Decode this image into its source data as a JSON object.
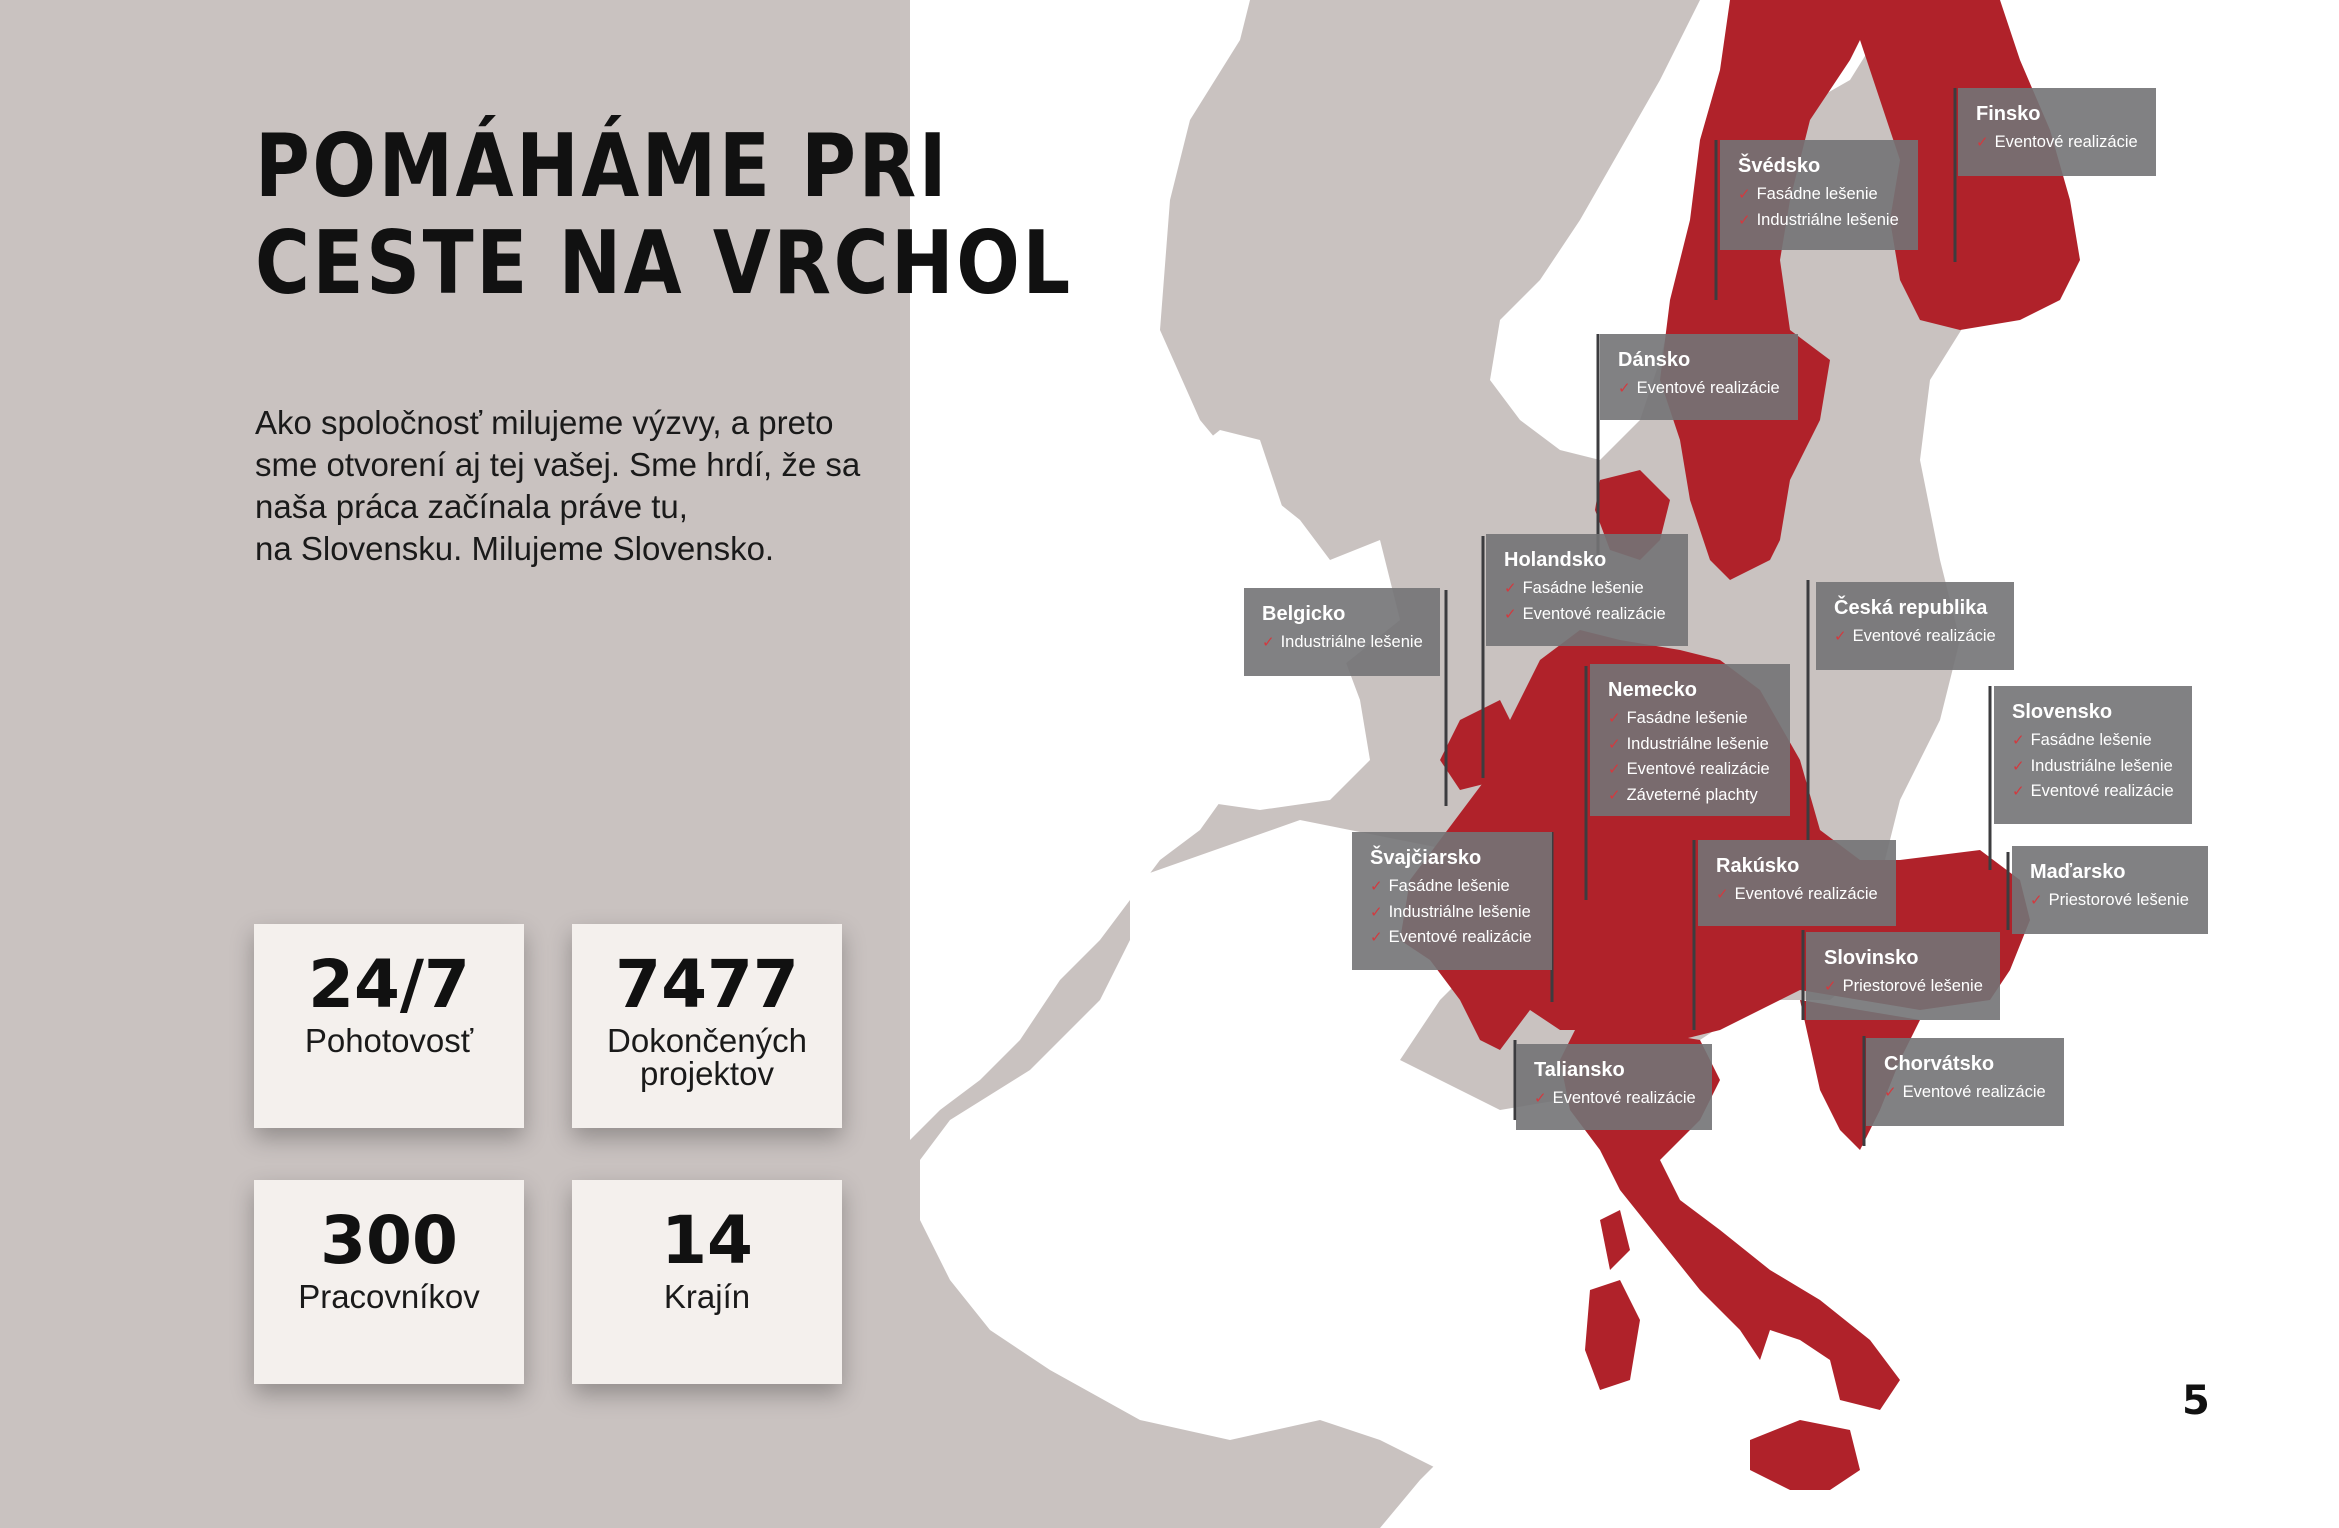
{
  "title_lines": [
    "POMÁHÁME PRI",
    "CESTE NA VRCHOL"
  ],
  "intro_lines": [
    "Ako spoločnosť milujeme výzvy, a preto",
    "sme otvorení aj tej vašej. Sme hrdí, že sa",
    "naša práca začínala práve tu,",
    "na Slovensku. Milujeme Slovensko."
  ],
  "stats": [
    {
      "value": "24/7",
      "label": "Pohotovosť"
    },
    {
      "value": "7477",
      "label": "Dokončených projektov"
    },
    {
      "value": "300",
      "label": "Pracovníkov"
    },
    {
      "value": "14",
      "label": "Krajín"
    }
  ],
  "countries": [
    {
      "name": "Švédsko",
      "services": [
        "Fasádne lešenie",
        "Industriálne lešenie"
      ]
    },
    {
      "name": "Finsko",
      "services": [
        "Eventové realizácie"
      ]
    },
    {
      "name": "Dánsko",
      "services": [
        "Eventové realizácie"
      ]
    },
    {
      "name": "Holandsko",
      "services": [
        "Fasádne lešenie",
        "Eventové realizácie"
      ]
    },
    {
      "name": "Belgicko",
      "services": [
        "Industriálne lešenie"
      ]
    },
    {
      "name": "Česká republika",
      "services": [
        "Eventové realizácie"
      ]
    },
    {
      "name": "Nemecko",
      "services": [
        "Fasádne lešenie",
        "Industriálne lešenie",
        "Eventové realizácie",
        "Záveterné plachty"
      ]
    },
    {
      "name": "Slovensko",
      "services": [
        "Fasádne lešenie",
        "Industriálne lešenie",
        "Eventové realizácie"
      ]
    },
    {
      "name": "Švajčiarsko",
      "services": [
        "Fasádne lešenie",
        "Industriálne lešenie",
        "Eventové realizácie"
      ]
    },
    {
      "name": "Rakúsko",
      "services": [
        "Eventové realizácie"
      ]
    },
    {
      "name": "Maďarsko",
      "services": [
        "Priestorové lešenie"
      ]
    },
    {
      "name": "Slovinsko",
      "services": [
        "Priestorové lešenie"
      ]
    },
    {
      "name": "Taliansko",
      "services": [
        "Eventové realizácie"
      ]
    },
    {
      "name": "Chorvátsko",
      "services": [
        "Eventové realizácie"
      ]
    }
  ],
  "check_icon": "✓",
  "page_number": "5",
  "colors": {
    "sea": "#c9c2c0",
    "land": "#ffffff",
    "highlight": "#b0222a",
    "label_box": "#737376",
    "check": "#d23a3f",
    "stat_card": "#f4f0ed"
  }
}
